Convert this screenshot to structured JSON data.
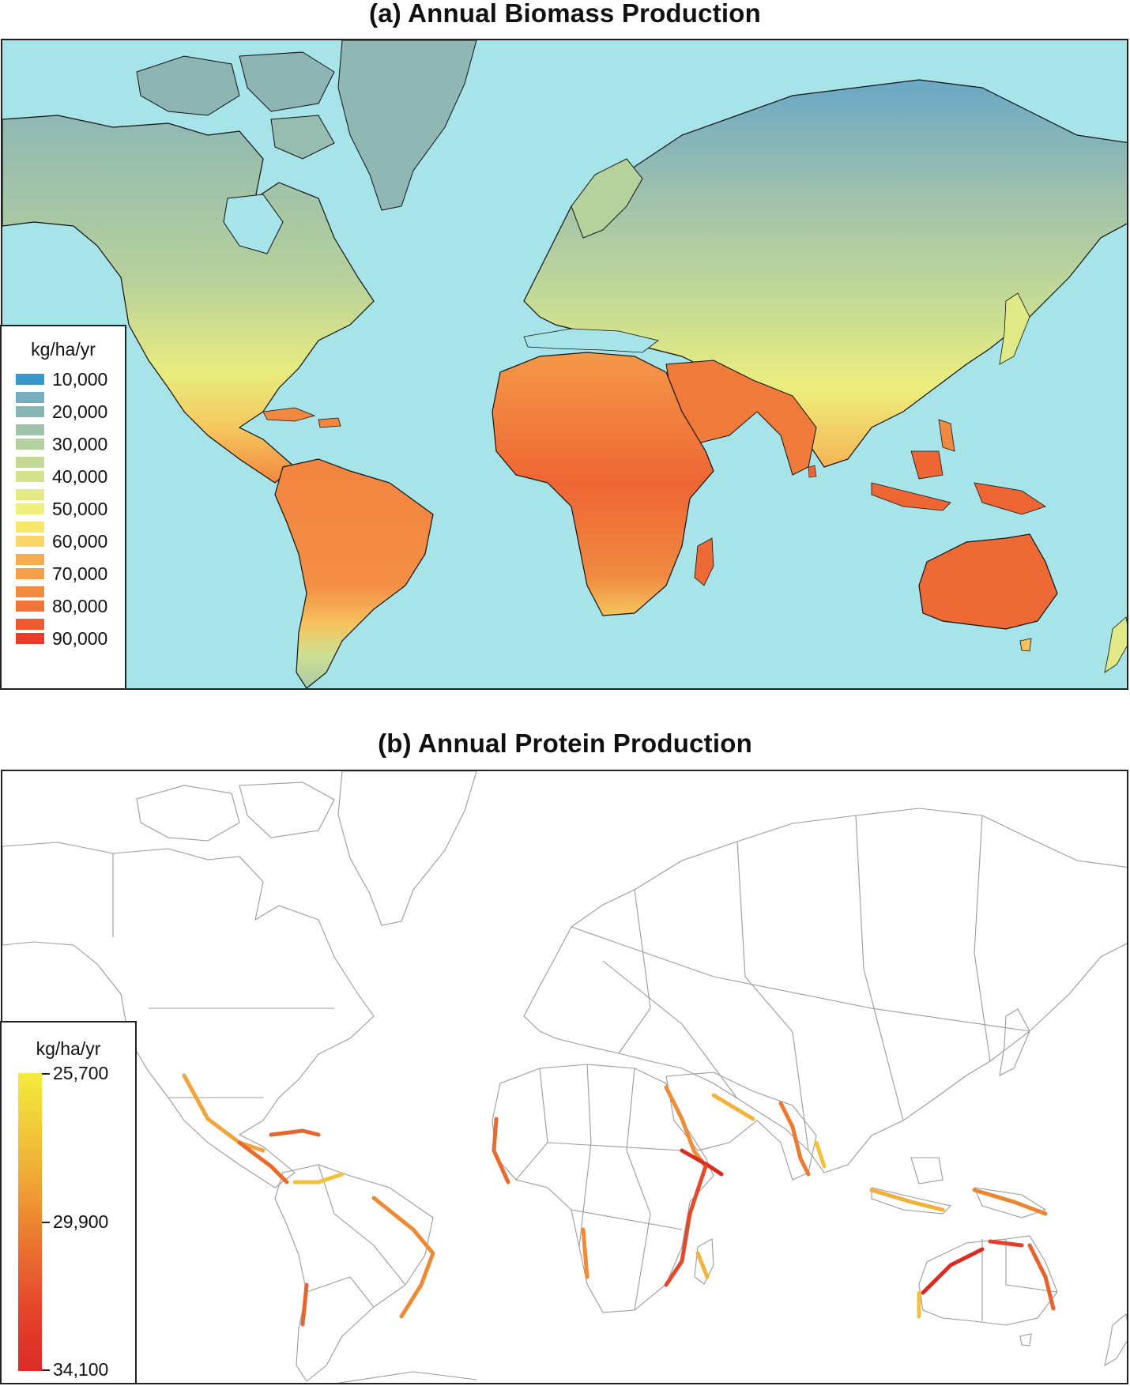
{
  "panel_a": {
    "title": "(a) Annual Biomass Production",
    "legend": {
      "unit": "kg/ha/yr",
      "rows": [
        {
          "label": "10,000",
          "color_a": "#3a97cc",
          "color_b": "#77aebf"
        },
        {
          "label": "20,000",
          "color_a": "#88b6b4",
          "color_b": "#9ec3a9"
        },
        {
          "label": "30,000",
          "color_a": "#b3d09f",
          "color_b": "#c4da94"
        },
        {
          "label": "40,000",
          "color_a": "#d4e38b",
          "color_b": "#e3ea83"
        },
        {
          "label": "50,000",
          "color_a": "#eff07c",
          "color_b": "#f7e86a"
        },
        {
          "label": "60,000",
          "color_a": "#f8d66a",
          "color_b": "#f6ad50"
        },
        {
          "label": "70,000",
          "color_a": "#f4a04a",
          "color_b": "#f28a40"
        },
        {
          "label": "80,000",
          "color_a": "#f07438",
          "color_b": "#ee5a30"
        },
        {
          "label": "90,000",
          "color_a": "#ea3a2a",
          "color_b": ""
        }
      ]
    },
    "ocean_color": "#a7e4ea"
  },
  "panel_b": {
    "title": "(b) Annual Protein Production",
    "legend": {
      "unit": "kg/ha/yr",
      "ticks": [
        {
          "label": "25,700",
          "fraction": 0.0
        },
        {
          "label": "29,900",
          "fraction": 0.5
        },
        {
          "label": "34,100",
          "fraction": 1.0
        }
      ],
      "color_low": "#f4ec3c",
      "color_high": "#dc2a26"
    }
  }
}
